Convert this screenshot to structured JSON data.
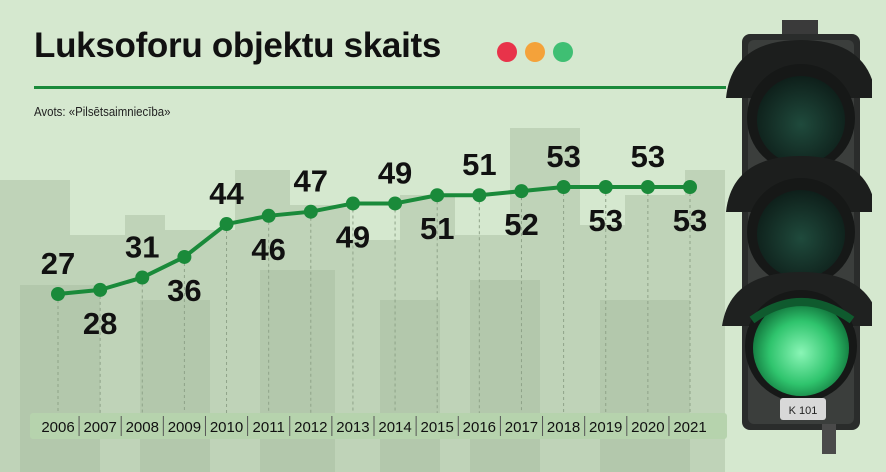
{
  "header": {
    "title": "Luksoforu objektu skaits",
    "source": "Avots: «Pilsētsaimniecība»",
    "dot_colors": [
      "#e8334a",
      "#f4a23a",
      "#3fbf73"
    ]
  },
  "colors": {
    "line": "#1a8a3a",
    "background": "#d5e8cf",
    "buildings": "#b9ccb2",
    "axis_band": "#b6d3ad",
    "label": "#111111"
  },
  "chart_data": {
    "type": "line",
    "title": "Luksoforu objektu skaits",
    "xlabel": "",
    "ylabel": "",
    "categories": [
      "2006",
      "2007",
      "2008",
      "2009",
      "2010",
      "2011",
      "2012",
      "2013",
      "2014",
      "2015",
      "2016",
      "2017",
      "2018",
      "2019",
      "2020",
      "2021"
    ],
    "series": [
      {
        "values": [
          27,
          28,
          31,
          36,
          44,
          46,
          47,
          49,
          49,
          51,
          51,
          52,
          53,
          53,
          53,
          53
        ],
        "labels": [
          "27",
          "28",
          "31",
          "36",
          "44",
          "46",
          "47",
          "49",
          "49",
          "51",
          "51",
          "52",
          "53",
          "53",
          "53",
          "53"
        ]
      }
    ],
    "grid": false,
    "legend": "none"
  }
}
